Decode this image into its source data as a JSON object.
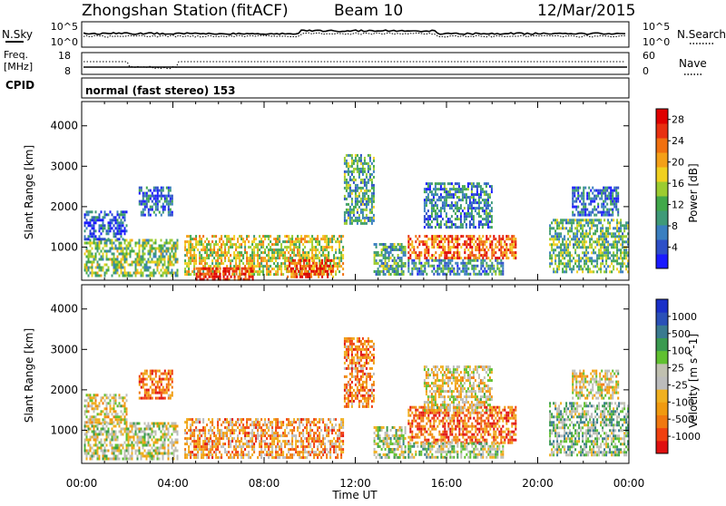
{
  "header": {
    "station": "Zhongshan Station",
    "mode": "(fitACF)",
    "beam": "Beam 10",
    "date": "12/Mar/2015"
  },
  "noise_panel": {
    "left_label": "N.Sky",
    "left_ticks": [
      "10^5",
      "10^0"
    ],
    "right_label": "N.Search",
    "right_ticks": [
      "10^5",
      "10^0"
    ]
  },
  "freq_panel": {
    "left_label_line1": "Freq.",
    "left_label_line2": "[MHz]",
    "left_ticks": [
      "18",
      "8"
    ],
    "right_label": "Nave",
    "right_ticks": [
      "60",
      "0"
    ]
  },
  "cpid": {
    "label": "CPID",
    "value": "normal (fast stereo) 153"
  },
  "chart_data": [
    {
      "type": "heatmap",
      "name_shown": "",
      "x_ticks": [
        "00:00",
        "04:00",
        "08:00",
        "12:00",
        "16:00",
        "20:00",
        "00:00"
      ],
      "xlim_hours": [
        0,
        24
      ],
      "ylabel": "Slant Range [km]",
      "y_ticks": [
        1000,
        2000,
        3000,
        4000
      ],
      "ylim": [
        180,
        4600
      ],
      "colorbar": {
        "label": "Power [dB]",
        "ticks": [
          4,
          8,
          12,
          16,
          20,
          24,
          28
        ],
        "range": [
          0,
          30
        ],
        "colors": [
          "#1a1aff",
          "#2d4fc8",
          "#3a7fc0",
          "#3f9a78",
          "#41a84a",
          "#9ccc30",
          "#f0d020",
          "#f4a018",
          "#f07010",
          "#e83010",
          "#e00000"
        ]
      },
      "regions": [
        {
          "t0": 0.1,
          "t1": 4.2,
          "r0": 300,
          "r1": 1200,
          "level": 0.45
        },
        {
          "t0": 0.1,
          "t1": 2.0,
          "r0": 1200,
          "r1": 1900,
          "level": 0.15
        },
        {
          "t0": 2.5,
          "t1": 4.0,
          "r0": 1800,
          "r1": 2500,
          "level": 0.2
        },
        {
          "t0": 4.5,
          "t1": 11.5,
          "r0": 300,
          "r1": 1300,
          "level": 0.55
        },
        {
          "t0": 5.0,
          "t1": 7.5,
          "r0": 200,
          "r1": 500,
          "level": 0.9
        },
        {
          "t0": 9.0,
          "t1": 11.0,
          "r0": 250,
          "r1": 700,
          "level": 0.85
        },
        {
          "t0": 11.5,
          "t1": 12.8,
          "r0": 1600,
          "r1": 3300,
          "level": 0.35
        },
        {
          "t0": 12.8,
          "t1": 14.2,
          "r0": 300,
          "r1": 1100,
          "level": 0.35
        },
        {
          "t0": 14.3,
          "t1": 19.0,
          "r0": 700,
          "r1": 1300,
          "level": 0.8
        },
        {
          "t0": 14.3,
          "t1": 18.5,
          "r0": 300,
          "r1": 700,
          "level": 0.3
        },
        {
          "t0": 15.0,
          "t1": 18.0,
          "r0": 1500,
          "r1": 2600,
          "level": 0.25
        },
        {
          "t0": 20.5,
          "t1": 24.0,
          "r0": 400,
          "r1": 1700,
          "level": 0.4
        },
        {
          "t0": 21.5,
          "t1": 23.5,
          "r0": 1800,
          "r1": 2500,
          "level": 0.2
        }
      ]
    },
    {
      "type": "heatmap",
      "name_shown": "",
      "x_ticks": [
        "00:00",
        "04:00",
        "08:00",
        "12:00",
        "16:00",
        "20:00",
        "00:00"
      ],
      "xlim_hours": [
        0,
        24
      ],
      "xlabel": "Time UT",
      "ylabel": "Slant Range [km]",
      "y_ticks": [
        1000,
        2000,
        3000,
        4000
      ],
      "ylim": [
        180,
        4600
      ],
      "colorbar": {
        "label": "Velocity [m s^-1]",
        "ticks": [
          -1000,
          -500,
          -100,
          -25,
          25,
          100,
          500,
          1000
        ],
        "tick_labels": [
          "-1000",
          "-500",
          "-100",
          "-25",
          "25",
          "100",
          "500",
          "1000"
        ],
        "colors": [
          "#e01010",
          "#f04010",
          "#f07810",
          "#f09a10",
          "#f0b020",
          "#bcbcbc",
          "#c0c0b0",
          "#60c030",
          "#3a9a50",
          "#3a7a90",
          "#2a50b8",
          "#1a30c8"
        ]
      },
      "regions": [
        {
          "t0": 0.1,
          "t1": 4.2,
          "r0": 300,
          "r1": 1200,
          "level": 0.5
        },
        {
          "t0": 0.1,
          "t1": 2.0,
          "r0": 1200,
          "r1": 1900,
          "level": 0.45
        },
        {
          "t0": 2.5,
          "t1": 4.0,
          "r0": 1800,
          "r1": 2500,
          "level": 0.2
        },
        {
          "t0": 4.5,
          "t1": 11.5,
          "r0": 300,
          "r1": 1300,
          "level": 0.3
        },
        {
          "t0": 11.5,
          "t1": 12.8,
          "r0": 1600,
          "r1": 3300,
          "level": 0.25
        },
        {
          "t0": 12.8,
          "t1": 14.2,
          "r0": 300,
          "r1": 1100,
          "level": 0.55
        },
        {
          "t0": 14.3,
          "t1": 19.0,
          "r0": 700,
          "r1": 1600,
          "level": 0.2
        },
        {
          "t0": 14.3,
          "t1": 18.5,
          "r0": 300,
          "r1": 700,
          "level": 0.55
        },
        {
          "t0": 15.0,
          "t1": 18.0,
          "r0": 1500,
          "r1": 2600,
          "level": 0.45
        },
        {
          "t0": 20.5,
          "t1": 24.0,
          "r0": 400,
          "r1": 1700,
          "level": 0.6
        },
        {
          "t0": 21.5,
          "t1": 23.5,
          "r0": 1800,
          "r1": 2500,
          "level": 0.45
        }
      ]
    }
  ]
}
